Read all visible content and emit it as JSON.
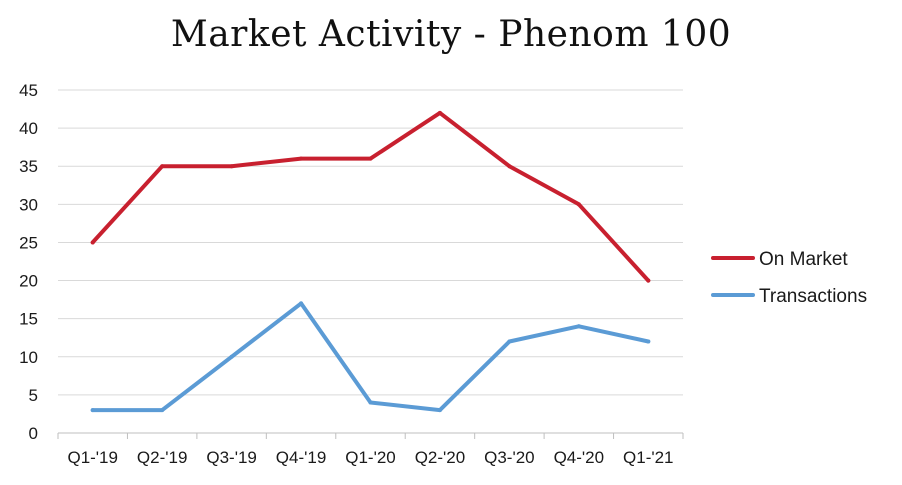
{
  "chart_data": {
    "type": "line",
    "title": "Market Activity - Phenom 100",
    "categories": [
      "Q1-'19",
      "Q2-'19",
      "Q3-'19",
      "Q4-'19",
      "Q1-'20",
      "Q2-'20",
      "Q3-'20",
      "Q4-'20",
      "Q1-'21"
    ],
    "series": [
      {
        "name": "On Market",
        "color": "#c8202f",
        "values": [
          25,
          35,
          35,
          36,
          36,
          42,
          35,
          30,
          20
        ]
      },
      {
        "name": "Transactions",
        "color": "#5b9bd5",
        "values": [
          3,
          3,
          10,
          17,
          4,
          3,
          12,
          14,
          12
        ]
      }
    ],
    "ylim": [
      0,
      45
    ],
    "yticks": [
      0,
      5,
      10,
      15,
      20,
      25,
      30,
      35,
      40,
      45
    ],
    "grid": true,
    "legend": "right"
  }
}
